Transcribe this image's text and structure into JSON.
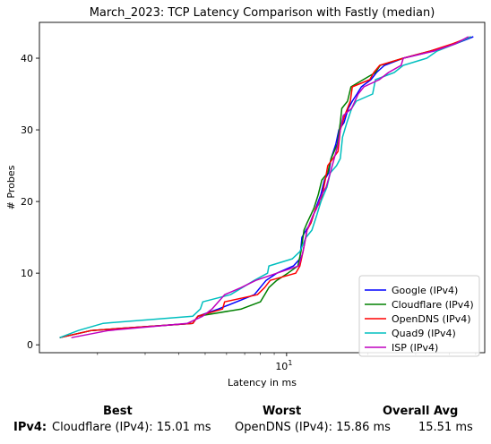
{
  "chart_data": {
    "type": "line",
    "title": "March_2023: TCP Latency Comparison with Fastly (median)",
    "xlabel": "Latency in ms",
    "ylabel": "# Probes",
    "xscale": "log",
    "xlim": [
      1.22,
      54
    ],
    "ylim": [
      -1.1,
      45
    ],
    "xticks": [
      {
        "value": 10,
        "label": "10"
      }
    ],
    "xtick_label_format": "10^1",
    "yticks": [
      0,
      10,
      20,
      30,
      40
    ],
    "grid": false,
    "legend_position": "lower-right",
    "series": [
      {
        "name": "Google (IPv4)",
        "color": "#0000ff",
        "points": [
          [
            1.45,
            1
          ],
          [
            1.9,
            2
          ],
          [
            4.5,
            3
          ],
          [
            4.7,
            4
          ],
          [
            5.6,
            5
          ],
          [
            7.6,
            7
          ],
          [
            8.4,
            9
          ],
          [
            9.2,
            10
          ],
          [
            10.6,
            11
          ],
          [
            11.2,
            12
          ],
          [
            11.4,
            15
          ],
          [
            11.8,
            16
          ],
          [
            12.3,
            17
          ],
          [
            12.8,
            19
          ],
          [
            13.4,
            21
          ],
          [
            13.8,
            23
          ],
          [
            14.3,
            24
          ],
          [
            14.6,
            26
          ],
          [
            15.2,
            28
          ],
          [
            15.6,
            30
          ],
          [
            16.3,
            31
          ],
          [
            16.9,
            33
          ],
          [
            17.5,
            34
          ],
          [
            18.2,
            35
          ],
          [
            18.9,
            36
          ],
          [
            20.5,
            37
          ],
          [
            21.5,
            38
          ],
          [
            23,
            39
          ],
          [
            27,
            40
          ],
          [
            35,
            41
          ],
          [
            42,
            42
          ],
          [
            49,
            43
          ]
        ]
      },
      {
        "name": "Cloudflare (IPv4)",
        "color": "#008000",
        "points": [
          [
            1.45,
            1
          ],
          [
            1.9,
            2
          ],
          [
            4.5,
            3
          ],
          [
            4.7,
            4
          ],
          [
            6.8,
            5
          ],
          [
            8.0,
            6
          ],
          [
            8.3,
            7
          ],
          [
            8.6,
            8
          ],
          [
            9.2,
            9
          ],
          [
            10.1,
            10
          ],
          [
            11.0,
            11
          ],
          [
            11.3,
            13
          ],
          [
            11.6,
            16
          ],
          [
            11.9,
            17
          ],
          [
            12.6,
            19
          ],
          [
            13.1,
            21
          ],
          [
            13.5,
            23
          ],
          [
            14.2,
            24
          ],
          [
            14.6,
            26
          ],
          [
            15,
            27
          ],
          [
            15.4,
            28
          ],
          [
            15.8,
            31
          ],
          [
            16,
            33
          ],
          [
            16.8,
            34
          ],
          [
            17.3,
            36
          ],
          [
            19.2,
            37
          ],
          [
            21.3,
            38
          ],
          [
            22.2,
            39
          ],
          [
            27,
            40
          ],
          [
            34,
            41
          ],
          [
            42,
            42
          ],
          [
            48,
            43
          ]
        ]
      },
      {
        "name": "OpenDNS (IPv4)",
        "color": "#ff0000",
        "points": [
          [
            1.45,
            1
          ],
          [
            1.9,
            2
          ],
          [
            4.5,
            3
          ],
          [
            4.7,
            4
          ],
          [
            5.8,
            5
          ],
          [
            5.9,
            6
          ],
          [
            7.8,
            7
          ],
          [
            8.3,
            8
          ],
          [
            8.7,
            9
          ],
          [
            10.8,
            10
          ],
          [
            11.2,
            11
          ],
          [
            11.5,
            13
          ],
          [
            11.9,
            16
          ],
          [
            12.3,
            17
          ],
          [
            12.8,
            19
          ],
          [
            13.4,
            20
          ],
          [
            13.9,
            23
          ],
          [
            14.2,
            25
          ],
          [
            15.5,
            27
          ],
          [
            15.8,
            30
          ],
          [
            16.4,
            32
          ],
          [
            17.2,
            34
          ],
          [
            17.5,
            36
          ],
          [
            20.3,
            37
          ],
          [
            21,
            38
          ],
          [
            22.1,
            39
          ],
          [
            27,
            40
          ],
          [
            34,
            41
          ],
          [
            41,
            42
          ],
          [
            48,
            43
          ]
        ]
      },
      {
        "name": "Quad9 (IPv4)",
        "color": "#00bfbf",
        "points": [
          [
            1.45,
            1
          ],
          [
            1.7,
            2
          ],
          [
            2.1,
            3
          ],
          [
            4.5,
            4
          ],
          [
            4.8,
            5
          ],
          [
            4.9,
            6
          ],
          [
            6.2,
            7
          ],
          [
            7.6,
            9
          ],
          [
            8.5,
            10
          ],
          [
            8.6,
            11
          ],
          [
            10.5,
            12
          ],
          [
            11.2,
            13
          ],
          [
            11.8,
            15
          ],
          [
            12.4,
            16
          ],
          [
            12.9,
            18
          ],
          [
            13.4,
            20
          ],
          [
            14.1,
            22
          ],
          [
            14.5,
            24
          ],
          [
            15.3,
            25
          ],
          [
            15.8,
            26
          ],
          [
            16.1,
            29
          ],
          [
            16.7,
            31
          ],
          [
            17.4,
            33
          ],
          [
            18.1,
            34
          ],
          [
            20.8,
            35
          ],
          [
            21.3,
            37
          ],
          [
            25,
            38
          ],
          [
            27,
            39
          ],
          [
            33,
            40
          ],
          [
            36,
            41
          ],
          [
            42,
            42
          ],
          [
            48,
            43
          ]
        ]
      },
      {
        "name": "ISP (IPv4)",
        "color": "#bf00bf",
        "points": [
          [
            1.6,
            1
          ],
          [
            2.2,
            2
          ],
          [
            4.3,
            3
          ],
          [
            4.9,
            4
          ],
          [
            5.3,
            5
          ],
          [
            5.9,
            7
          ],
          [
            6.8,
            8
          ],
          [
            7.7,
            9
          ],
          [
            9.2,
            10
          ],
          [
            11.1,
            11
          ],
          [
            11.5,
            13
          ],
          [
            11.9,
            16
          ],
          [
            12.5,
            18
          ],
          [
            12.9,
            19
          ],
          [
            13.5,
            21
          ],
          [
            14,
            22
          ],
          [
            14.5,
            24
          ],
          [
            15,
            26
          ],
          [
            15.5,
            28
          ],
          [
            15.8,
            30
          ],
          [
            16.2,
            32
          ],
          [
            17.4,
            33
          ],
          [
            18.4,
            35
          ],
          [
            19.3,
            36
          ],
          [
            22,
            37
          ],
          [
            23.8,
            38
          ],
          [
            26.5,
            39
          ],
          [
            27,
            40
          ],
          [
            35,
            41
          ],
          [
            42,
            42
          ],
          [
            47,
            43
          ]
        ]
      }
    ]
  },
  "summary": {
    "best_header": "Best",
    "worst_header": "Worst",
    "avg_header": "Overall Avg",
    "row_label": "IPv4:",
    "best_value": "Cloudflare (IPv4): 15.01 ms",
    "worst_value": "OpenDNS (IPv4): 15.86 ms",
    "avg_value": "15.51 ms"
  }
}
